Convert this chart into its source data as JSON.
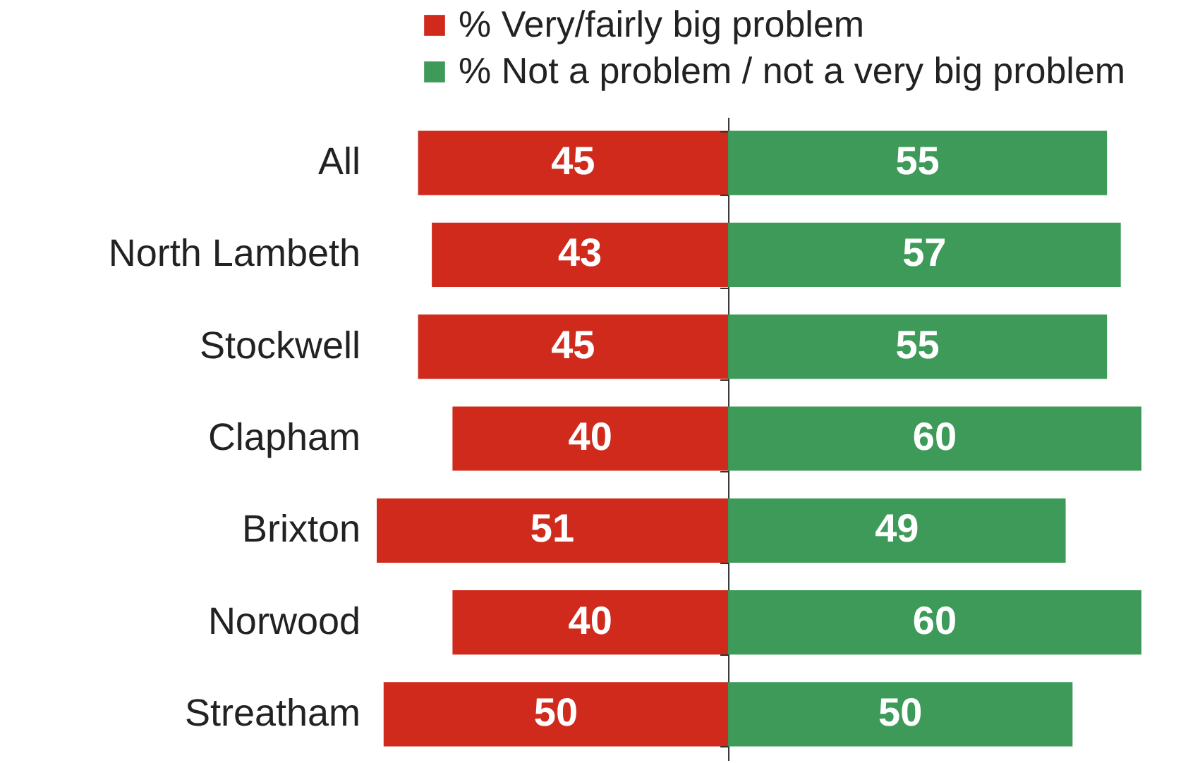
{
  "chart_data": [
    {
      "type": "bar",
      "orientation": "horizontal",
      "categories": [
        "All",
        "North Lambeth",
        "Stockwell",
        "Clapham",
        "Brixton",
        "Norwood",
        "Streatham"
      ],
      "xlim": [
        51,
        0
      ],
      "series": [
        {
          "name": "% Very/fairly big problem",
          "color": "#cf2a1c",
          "values": [
            45,
            43,
            45,
            40,
            51,
            40,
            50
          ]
        }
      ],
      "data_labels": true,
      "legend": "top",
      "tick_labels": "y",
      "grid": false
    },
    {
      "type": "bar",
      "orientation": "horizontal",
      "categories": [
        null,
        null,
        null,
        null,
        null,
        null,
        null
      ],
      "xlim": [
        0,
        60
      ],
      "series": [
        {
          "name": "% Not a problem / not a very big problem",
          "color": "#3d9a58",
          "values": [
            55,
            57,
            55,
            60,
            49,
            60,
            50
          ]
        }
      ],
      "data_labels": true,
      "legend": "top",
      "tick_labels": false,
      "grid": false
    }
  ]
}
